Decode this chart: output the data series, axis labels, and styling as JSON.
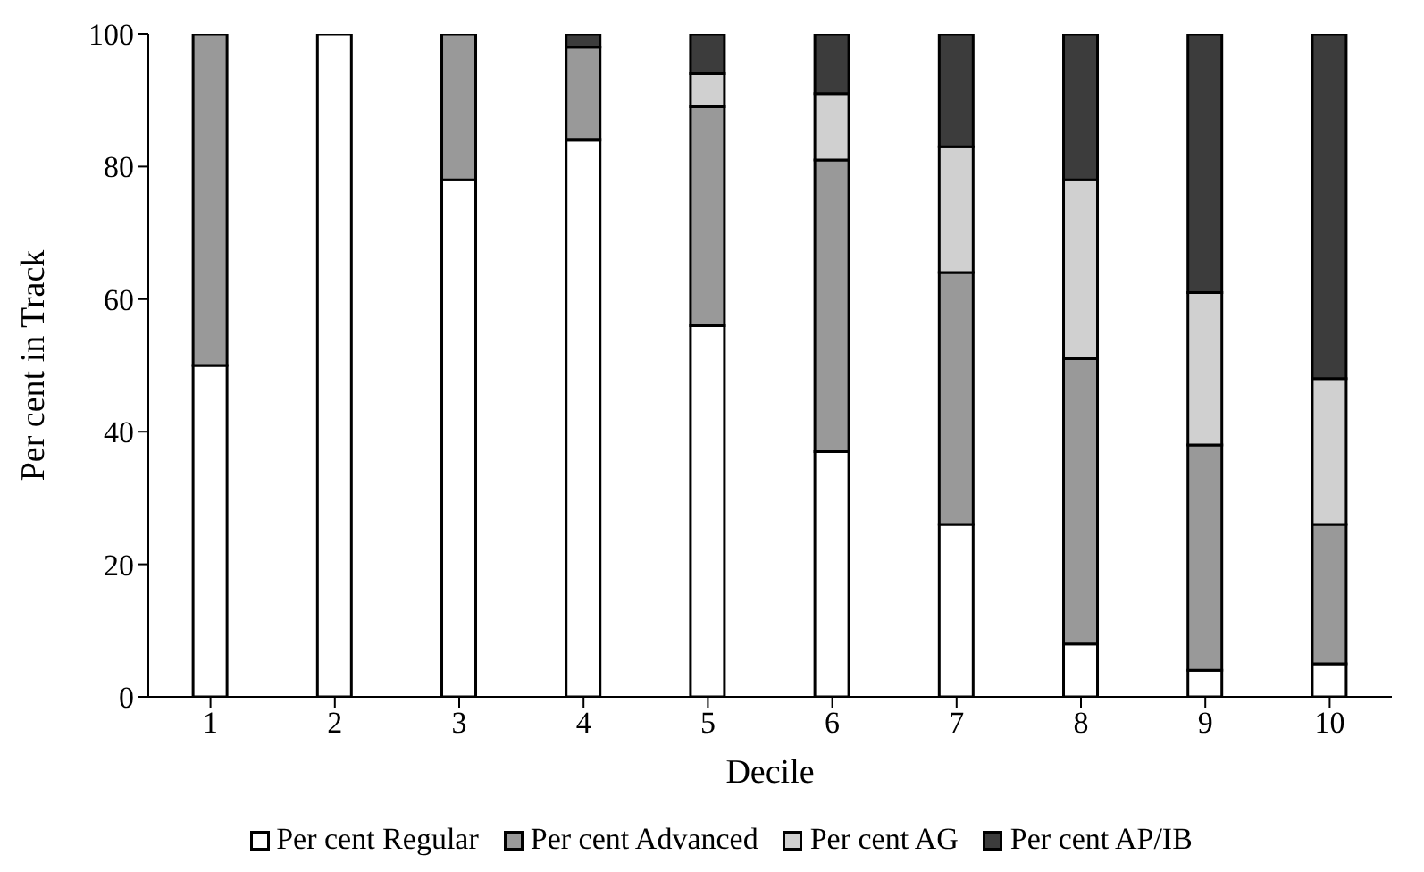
{
  "chart_data": {
    "type": "bar",
    "stacked": true,
    "xlabel": "Decile",
    "ylabel": "Per cent in Track",
    "categories": [
      "1",
      "2",
      "3",
      "4",
      "5",
      "6",
      "7",
      "8",
      "9",
      "10"
    ],
    "series": [
      {
        "name": "Per cent Regular",
        "color": "#ffffff",
        "values": [
          50,
          100,
          78,
          84,
          56,
          37,
          26,
          8,
          4,
          5
        ]
      },
      {
        "name": "Per cent Advanced",
        "color": "#999999",
        "values": [
          50,
          0,
          22,
          14,
          33,
          44,
          38,
          43,
          34,
          21
        ]
      },
      {
        "name": "Per cent AG",
        "color": "#d0d0d0",
        "values": [
          0,
          0,
          0,
          0,
          5,
          10,
          19,
          27,
          23,
          22
        ]
      },
      {
        "name": "Per cent AP/IB",
        "color": "#3c3c3c",
        "values": [
          0,
          0,
          0,
          2,
          6,
          9,
          17,
          22,
          39,
          52
        ]
      }
    ],
    "ylim": [
      0,
      100
    ],
    "yticks": [
      0,
      20,
      40,
      60,
      80,
      100
    ],
    "legend": "bottom"
  }
}
